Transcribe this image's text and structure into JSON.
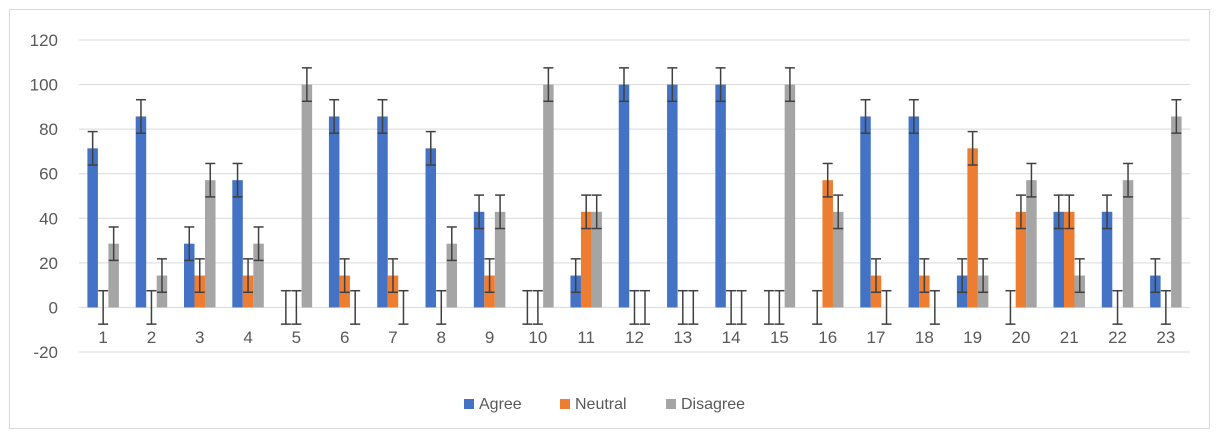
{
  "chart_data": {
    "type": "bar",
    "title": "",
    "xlabel": "",
    "ylabel": "",
    "categories": [
      "1",
      "2",
      "3",
      "4",
      "5",
      "6",
      "7",
      "8",
      "9",
      "10",
      "11",
      "12",
      "13",
      "14",
      "15",
      "16",
      "17",
      "18",
      "19",
      "20",
      "21",
      "22",
      "23"
    ],
    "ylim": [
      -20,
      120
    ],
    "yticks": [
      -20,
      0,
      20,
      40,
      60,
      80,
      100,
      120
    ],
    "grid": true,
    "legend_position": "bottom",
    "error_bars": true,
    "error_bar_size": 7.5,
    "series": [
      {
        "name": "Agree",
        "color": "#4472c4",
        "values": [
          71.4,
          85.7,
          28.6,
          57.1,
          0,
          85.7,
          85.7,
          71.4,
          42.9,
          0,
          14.3,
          100,
          100,
          100,
          0,
          0,
          85.7,
          85.7,
          14.3,
          0,
          42.9,
          42.9,
          14.3
        ]
      },
      {
        "name": "Neutral",
        "color": "#ed7d31",
        "values": [
          0,
          0,
          14.3,
          14.3,
          0,
          14.3,
          14.3,
          0,
          14.3,
          0,
          42.9,
          0,
          0,
          0,
          0,
          57.1,
          14.3,
          14.3,
          71.4,
          42.9,
          42.9,
          0,
          0
        ]
      },
      {
        "name": "Disagree",
        "color": "#a5a5a5",
        "values": [
          28.6,
          14.3,
          57.1,
          28.6,
          100,
          0,
          0,
          28.6,
          42.9,
          100,
          42.9,
          0,
          0,
          0,
          100,
          42.9,
          0,
          0,
          14.3,
          57.1,
          14.3,
          57.1,
          85.7
        ]
      }
    ]
  }
}
